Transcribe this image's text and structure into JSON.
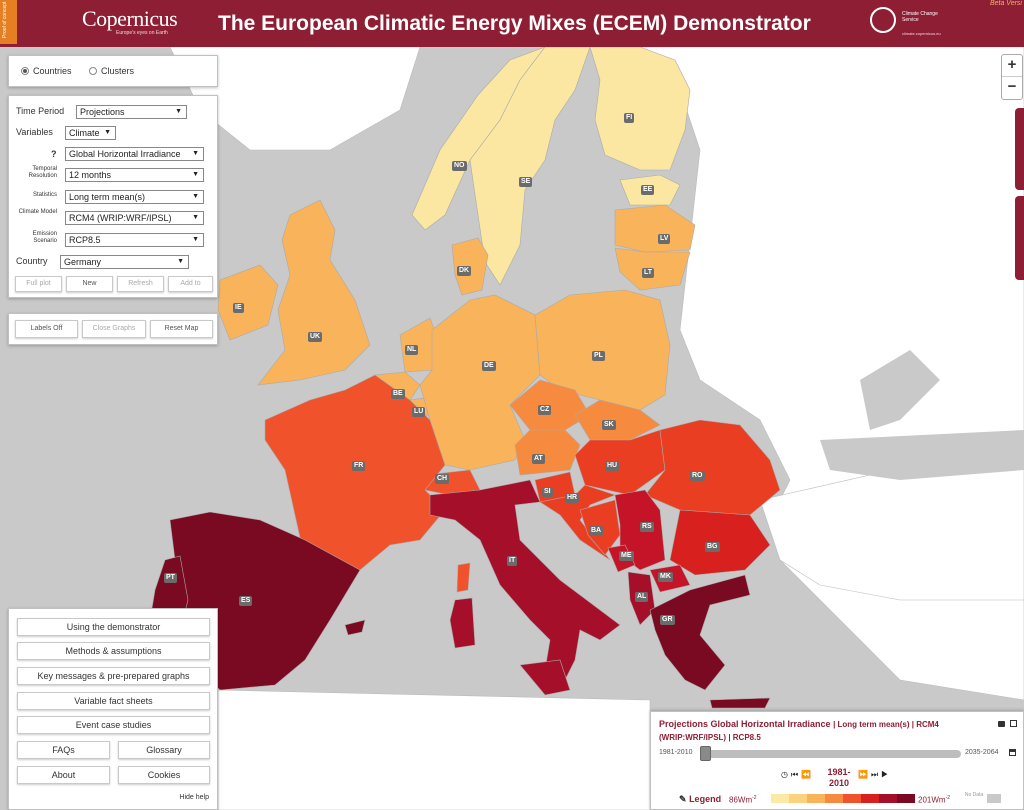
{
  "header": {
    "proof_of_concept": "Proof of concept",
    "brand": "Copernicus",
    "brand_tagline": "Europe's eyes on Earth",
    "title": "The European Climatic Energy Mixes (ECEM) Demonstrator",
    "c3s_name": "Climate Change Service",
    "c3s_url": "climate.copernicus.eu",
    "beta": "Beta Versi"
  },
  "mode": {
    "countries": "Countries",
    "clusters": "Clusters",
    "selected": "Countries"
  },
  "controls": {
    "time_period_label": "Time Period",
    "time_period": "Projections",
    "variables_label": "Variables",
    "variables": "Climate",
    "help": "?",
    "variable": "Global Horizontal Irradiance",
    "temporal_resolution_label": "Temporal Resolution",
    "temporal_resolution": "12 months",
    "statistics_label": "Statistics",
    "statistics": "Long term mean(s)",
    "climate_model_label": "Climate Model",
    "climate_model": "RCM4 (WRIP:WRF/IPSL)",
    "emission_scenario_label": "Emission Scenario",
    "emission_scenario": "RCP8.5",
    "country_label": "Country",
    "country": "Germany",
    "buttons": {
      "full_plot": "Full plot",
      "new": "New",
      "refresh": "Refresh",
      "add_to": "Add to"
    }
  },
  "map_tools": {
    "labels_off": "Labels Off",
    "close_graphs": "Close Graphs",
    "reset_map": "Reset Map"
  },
  "zoom": {
    "in": "+",
    "out": "−"
  },
  "help_menu": {
    "using": "Using the demonstrator",
    "methods": "Methods & assumptions",
    "key_messages": "Key messages & pre-prepared graphs",
    "fact_sheets": "Variable fact sheets",
    "events": "Event case studies",
    "faqs": "FAQs",
    "glossary": "Glossary",
    "about": "About",
    "cookies": "Cookies",
    "hide_help": "Hide help"
  },
  "countries": [
    {
      "code": "NO",
      "color": "#fbe7a1"
    },
    {
      "code": "SE",
      "color": "#fbe7a1"
    },
    {
      "code": "FI",
      "color": "#fbe7a1"
    },
    {
      "code": "EE",
      "color": "#fbe7a1"
    },
    {
      "code": "LV",
      "color": "#f9b35b"
    },
    {
      "code": "LT",
      "color": "#f9b35b"
    },
    {
      "code": "DK",
      "color": "#f9b35b"
    },
    {
      "code": "IE",
      "color": "#f9b35b"
    },
    {
      "code": "UK",
      "color": "#f9b35b"
    },
    {
      "code": "NL",
      "color": "#f9b35b"
    },
    {
      "code": "BE",
      "color": "#f9b35b"
    },
    {
      "code": "LU",
      "color": "#f9b35b"
    },
    {
      "code": "DE",
      "color": "#f9b35b"
    },
    {
      "code": "PL",
      "color": "#f9b35b"
    },
    {
      "code": "CZ",
      "color": "#f68b3f"
    },
    {
      "code": "SK",
      "color": "#f68b3f"
    },
    {
      "code": "AT",
      "color": "#f68b3f"
    },
    {
      "code": "CH",
      "color": "#f0522b"
    },
    {
      "code": "FR",
      "color": "#f0522b"
    },
    {
      "code": "HU",
      "color": "#ea3e22"
    },
    {
      "code": "RO",
      "color": "#ea3e22"
    },
    {
      "code": "SI",
      "color": "#ea3e22"
    },
    {
      "code": "HR",
      "color": "#ea3e22"
    },
    {
      "code": "BA",
      "color": "#ea3e22"
    },
    {
      "code": "RS",
      "color": "#c51428"
    },
    {
      "code": "BG",
      "color": "#d8201e"
    },
    {
      "code": "ME",
      "color": "#c51428"
    },
    {
      "code": "MK",
      "color": "#c51428"
    },
    {
      "code": "AL",
      "color": "#a50f2a"
    },
    {
      "code": "GR",
      "color": "#7a0a22"
    },
    {
      "code": "IT",
      "color": "#a50f2a"
    },
    {
      "code": "PT",
      "color": "#7a0a22"
    },
    {
      "code": "ES",
      "color": "#7a0a22"
    }
  ],
  "legend": {
    "title": "Projections Global Horizontal Irradiance",
    "subtitle": "| Long term mean(s) | RCM4 (WRIP:WRF/IPSL) | RCP8.5",
    "range_start": "1981-2010",
    "range_end": "2035-2064",
    "current_period": "1981-2010",
    "slider_position": 0.0,
    "legend_label": "Legend",
    "min": "86Wm",
    "max": "201Wm",
    "unit_exp": "-2",
    "no_data": "No Data",
    "scale_colors": [
      "#fde9a6",
      "#fbd27e",
      "#f9b35b",
      "#f68b3f",
      "#f0522b",
      "#d8201e",
      "#a50f2a",
      "#7a0a22"
    ]
  }
}
